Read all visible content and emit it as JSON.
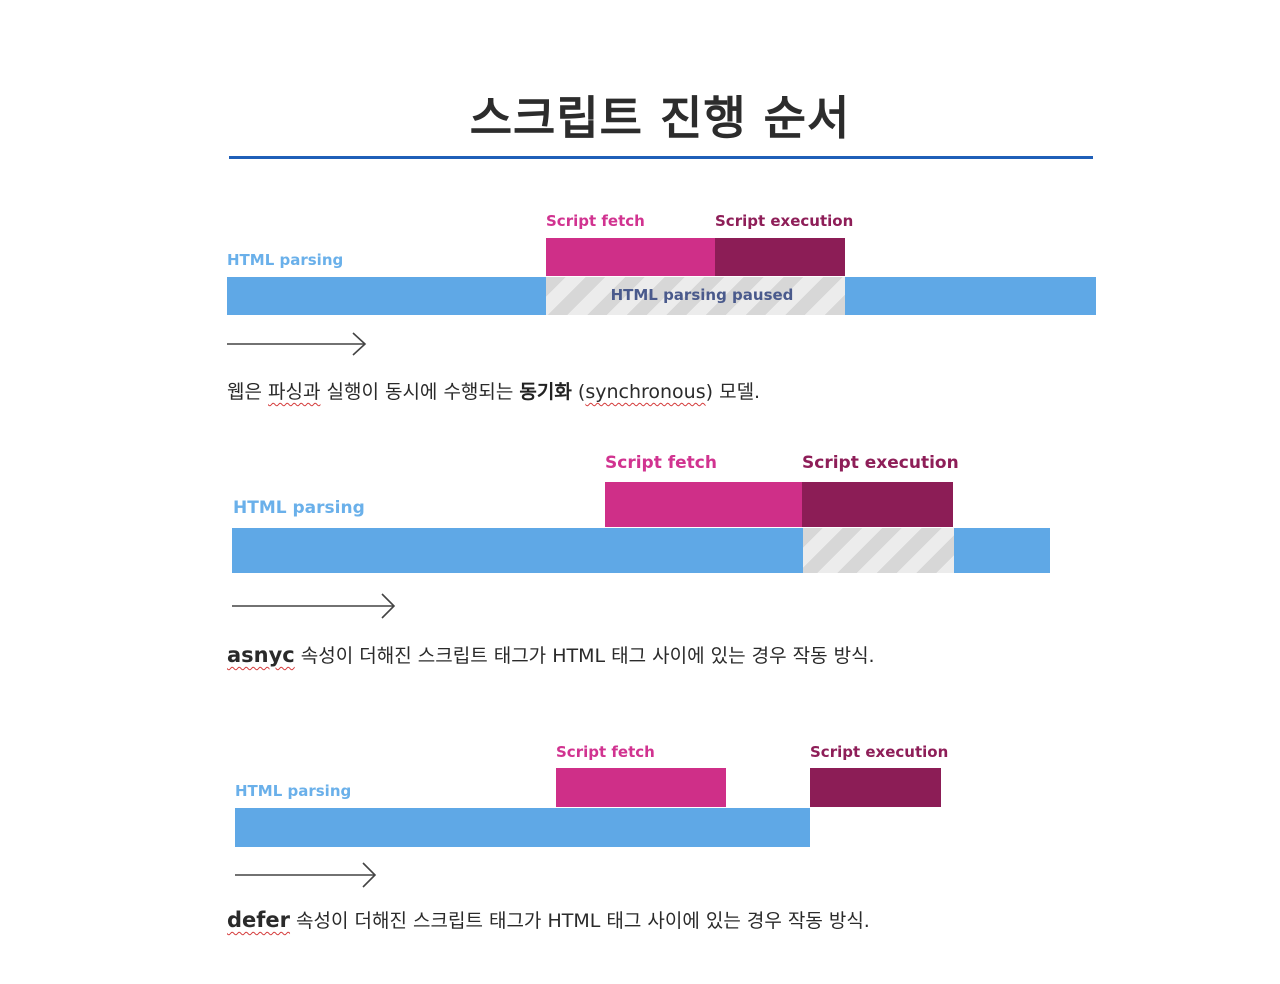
{
  "title": "스크립트 진행 순서",
  "colors": {
    "html_parsing": "#5fa8e6",
    "script_fetch": "#cf2f88",
    "script_execution": "#8c1d56",
    "paused_stripe": "#d7d7d7",
    "rule": "#1f5fb8"
  },
  "diagrams": [
    {
      "labels": {
        "html_parsing": "HTML parsing",
        "script_fetch": "Script fetch",
        "script_execution": "Script execution",
        "paused": "HTML parsing paused"
      },
      "caption": {
        "before1": "웹은 ",
        "underlined1": "파싱과",
        "mid1": " 실행이 동시에 수행되는 ",
        "bold": "동기화",
        "mid2": " (",
        "underlined2": "synchronous",
        "after": ") 모델."
      }
    },
    {
      "labels": {
        "html_parsing": "HTML parsing",
        "script_fetch": "Script fetch",
        "script_execution": "Script execution"
      },
      "caption": {
        "keyword": "asnyc",
        "text": " 속성이 더해진 스크립트 태그가 HTML 태그 사이에 있는 경우 작동 방식."
      }
    },
    {
      "labels": {
        "html_parsing": "HTML parsing",
        "script_fetch": "Script fetch",
        "script_execution": "Script execution"
      },
      "caption": {
        "keyword": "defer",
        "text": " 속성이 더해진 스크립트 태그가 HTML 태그 사이에 있는 경우 작동 방식."
      }
    }
  ]
}
